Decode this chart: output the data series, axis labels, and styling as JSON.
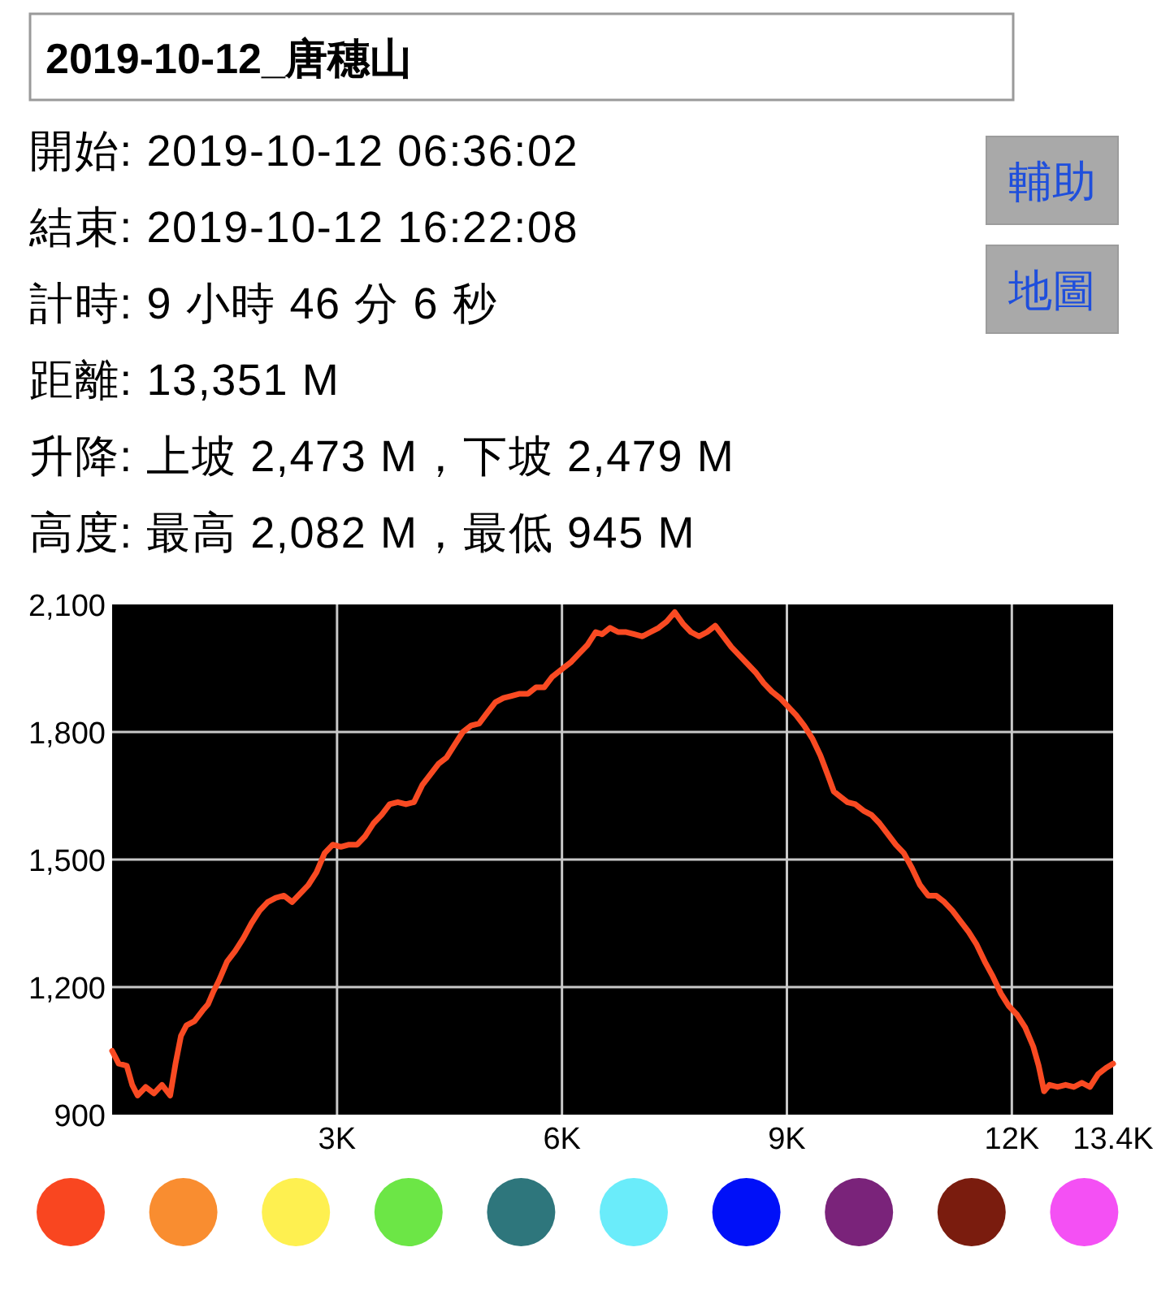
{
  "chart_data": {
    "type": "line",
    "title": "2019-10-12_唐穗山",
    "annotations": [
      "開始: 2019-10-12 06:36:02",
      "結束: 2019-10-12 16:22:08",
      "計時: 9 小時 46 分 6 秒",
      "距離: 13,351 M",
      "升降: 上坡 2,473 M，下坡 2,479 M",
      "高度: 最高 2,082 M，最低 945 M",
      "輔助",
      "地圖"
    ],
    "x": [
      0,
      87,
      195,
      268,
      340,
      448,
      557,
      665,
      774,
      846,
      918,
      991,
      1099,
      1207,
      1280,
      1352,
      1424,
      1533,
      1641,
      1750,
      1858,
      1967,
      2075,
      2183,
      2292,
      2400,
      2509,
      2617,
      2726,
      2834,
      2943,
      3051,
      3160,
      3268,
      3376,
      3485,
      3593,
      3702,
      3810,
      3919,
      4027,
      4136,
      4244,
      4352,
      4461,
      4569,
      4678,
      4786,
      4895,
      5003,
      5112,
      5220,
      5328,
      5437,
      5545,
      5654,
      5762,
      5871,
      6015,
      6124,
      6232,
      6341,
      6449,
      6534,
      6642,
      6750,
      6857,
      6965,
      7073,
      7181,
      7289,
      7397,
      7504,
      7612,
      7720,
      7828,
      7936,
      8044,
      8152,
      8259,
      8367,
      8475,
      8583,
      8691,
      8799,
      8907,
      9014,
      9122,
      9230,
      9338,
      9446,
      9554,
      9626,
      9697,
      9805,
      9913,
      10021,
      10129,
      10237,
      10345,
      10452,
      10560,
      10668,
      10776,
      10884,
      10992,
      11100,
      11208,
      11315,
      11423,
      11531,
      11639,
      11747,
      11854,
      11962,
      12070,
      12178,
      12286,
      12358,
      12430,
      12502,
      12610,
      12718,
      12826,
      12934,
      13042,
      13149,
      13257,
      13351
    ],
    "series": [
      {
        "color": "#f94a22",
        "values": [
          1050,
          1020,
          1015,
          970,
          945,
          965,
          950,
          970,
          945,
          1020,
          1085,
          1110,
          1120,
          1145,
          1160,
          1190,
          1215,
          1260,
          1285,
          1315,
          1350,
          1380,
          1400,
          1410,
          1415,
          1400,
          1420,
          1440,
          1470,
          1515,
          1535,
          1530,
          1535,
          1535,
          1555,
          1585,
          1605,
          1630,
          1635,
          1630,
          1635,
          1675,
          1700,
          1725,
          1740,
          1770,
          1800,
          1815,
          1820,
          1845,
          1870,
          1880,
          1885,
          1890,
          1890,
          1905,
          1905,
          1930,
          1950,
          1965,
          1985,
          2005,
          2035,
          2030,
          2045,
          2035,
          2035,
          2030,
          2025,
          2035,
          2045,
          2060,
          2082,
          2055,
          2035,
          2025,
          2035,
          2050,
          2025,
          2000,
          1980,
          1960,
          1940,
          1915,
          1895,
          1880,
          1860,
          1840,
          1815,
          1785,
          1745,
          1695,
          1660,
          1650,
          1635,
          1630,
          1615,
          1605,
          1585,
          1560,
          1535,
          1515,
          1480,
          1440,
          1415,
          1415,
          1400,
          1380,
          1355,
          1330,
          1300,
          1260,
          1225,
          1185,
          1155,
          1135,
          1105,
          1060,
          1015,
          955,
          970,
          965,
          970,
          965,
          975,
          965,
          995,
          1010,
          1020
        ]
      }
    ],
    "xlim": [
      0,
      13351
    ],
    "xticks": [
      {
        "value": 3000,
        "label": "3K"
      },
      {
        "value": 6000,
        "label": "6K"
      },
      {
        "value": 9000,
        "label": "9K"
      },
      {
        "value": 12000,
        "label": "12K"
      },
      {
        "value": 13351,
        "label": "13.4K"
      }
    ],
    "ylim": [
      900,
      2100
    ],
    "yticks": [
      900,
      {
        "value": 1200,
        "label": "1,200"
      },
      {
        "value": 1500,
        "label": "1,500"
      },
      {
        "value": 1800,
        "label": "1,800"
      },
      {
        "value": 2100,
        "label": "2,100"
      }
    ],
    "grid": true,
    "line_style": "solid"
  }
}
